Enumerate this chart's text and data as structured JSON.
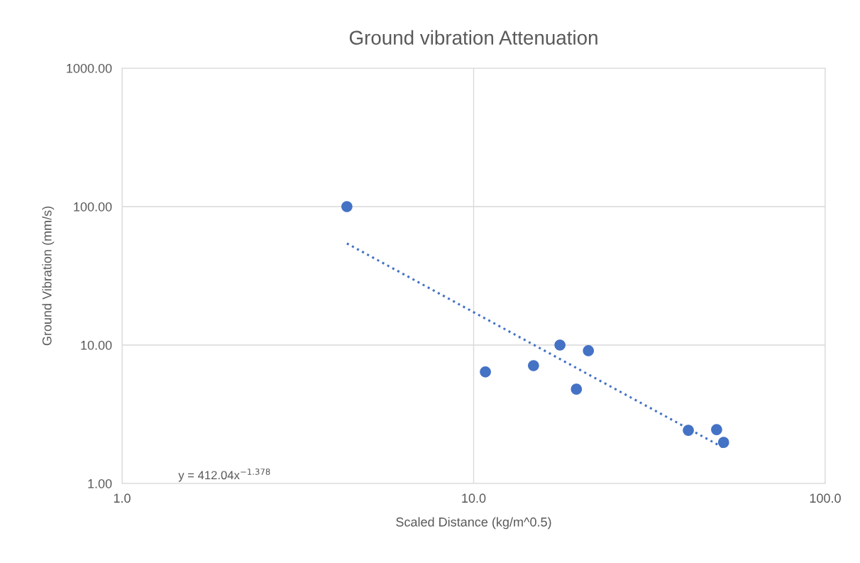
{
  "chart_data": {
    "type": "scatter",
    "title": "Ground vibration Attenuation",
    "xlabel": "Scaled Distance (kg/m^0.5)",
    "ylabel": "Ground Vibration (mm/s)",
    "log": "xy",
    "grid": true,
    "marker": "circle",
    "xlim": [
      1,
      100
    ],
    "xticks": [
      {
        "value": 1,
        "label": "1.0"
      },
      {
        "value": 10,
        "label": "10.0"
      },
      {
        "value": 100,
        "label": "100.0"
      }
    ],
    "ylim": [
      1,
      1000
    ],
    "yticks": [
      {
        "value": 1,
        "label": "1.00"
      },
      {
        "value": 10,
        "label": "10.00"
      },
      {
        "value": 100,
        "label": "100.00"
      },
      {
        "value": 1000,
        "label": "1000.00"
      }
    ],
    "series": [
      {
        "type": "scatter",
        "color": "#4472c4",
        "x": [
          4.36,
          10.8,
          14.8,
          17.6,
          19.6,
          21.2,
          40.8,
          49.1,
          51.4
        ],
        "values": [
          100,
          6.4,
          7.1,
          10,
          4.8,
          9.1,
          2.42,
          2.45,
          1.98
        ]
      },
      {
        "type": "line",
        "color": "#4472c4",
        "line_style": "dotted",
        "marker": "none",
        "x": [
          4.36,
          51.4
        ],
        "values": [
          54.2,
          1.81
        ]
      }
    ],
    "annotations": [
      "y = 412.04x$^{−1.378}$"
    ]
  }
}
